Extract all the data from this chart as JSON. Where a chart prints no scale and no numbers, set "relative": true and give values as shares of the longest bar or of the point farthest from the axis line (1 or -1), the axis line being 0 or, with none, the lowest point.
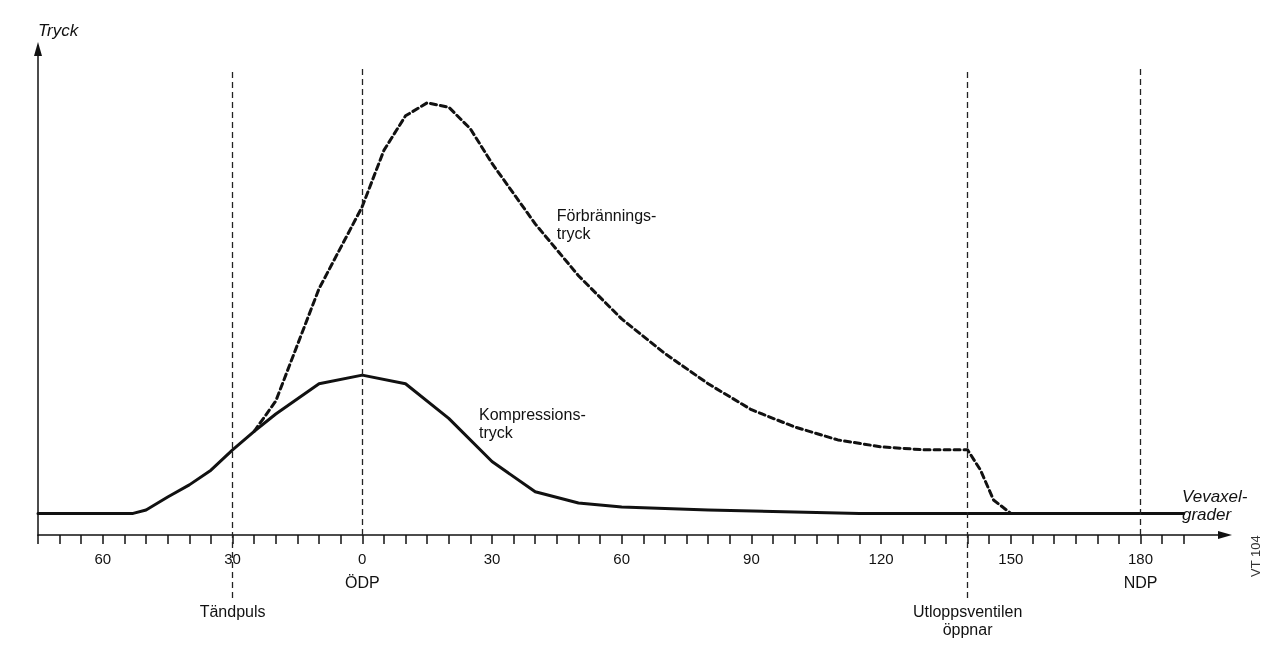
{
  "chart_data": {
    "type": "line",
    "relative": true,
    "xlabel": "Vevaxel-\ngrader",
    "ylabel": "Tryck",
    "marker": "none",
    "grid": false,
    "legend": false,
    "xlim": [
      -75,
      200
    ],
    "xticks": [
      {
        "value": -75,
        "label": null
      },
      {
        "value": -70,
        "label": null
      },
      {
        "value": -65,
        "label": null
      },
      {
        "value": -60,
        "label": "60"
      },
      {
        "value": -55,
        "label": null
      },
      {
        "value": -50,
        "label": null
      },
      {
        "value": -45,
        "label": null
      },
      {
        "value": -40,
        "label": null
      },
      {
        "value": -35,
        "label": null
      },
      {
        "value": -30,
        "label": "30"
      },
      {
        "value": -25,
        "label": null
      },
      {
        "value": -20,
        "label": null
      },
      {
        "value": -15,
        "label": null
      },
      {
        "value": -10,
        "label": null
      },
      {
        "value": -5,
        "label": null
      },
      0,
      {
        "value": 5,
        "label": null
      },
      {
        "value": 10,
        "label": null
      },
      {
        "value": 15,
        "label": null
      },
      {
        "value": 20,
        "label": null
      },
      {
        "value": 25,
        "label": null
      },
      30,
      {
        "value": 35,
        "label": null
      },
      {
        "value": 40,
        "label": null
      },
      {
        "value": 45,
        "label": null
      },
      {
        "value": 50,
        "label": null
      },
      {
        "value": 55,
        "label": null
      },
      60,
      {
        "value": 65,
        "label": null
      },
      {
        "value": 70,
        "label": null
      },
      {
        "value": 75,
        "label": null
      },
      {
        "value": 80,
        "label": null
      },
      {
        "value": 85,
        "label": null
      },
      90,
      {
        "value": 95,
        "label": null
      },
      {
        "value": 100,
        "label": null
      },
      {
        "value": 105,
        "label": null
      },
      {
        "value": 110,
        "label": null
      },
      {
        "value": 115,
        "label": null
      },
      120,
      {
        "value": 125,
        "label": null
      },
      {
        "value": 130,
        "label": null
      },
      {
        "value": 135,
        "label": null
      },
      {
        "value": 140,
        "label": null
      },
      {
        "value": 145,
        "label": null
      },
      150,
      {
        "value": 155,
        "label": null
      },
      {
        "value": 160,
        "label": null
      },
      {
        "value": 165,
        "label": null
      },
      {
        "value": 170,
        "label": null
      },
      {
        "value": 175,
        "label": null
      },
      180,
      {
        "value": 185,
        "label": null
      },
      {
        "value": 190,
        "label": null
      }
    ],
    "series": [
      {
        "name": "Kompressions-\ntryck",
        "color": "#111111",
        "line_style": "solid",
        "x": [
          -75,
          -53,
          -50,
          -45,
          -40,
          -35,
          -30,
          -25,
          -20,
          -10,
          0,
          10,
          20,
          30,
          40,
          50,
          60,
          80,
          100,
          115,
          190
        ],
        "values": [
          0.05,
          0.05,
          0.058,
          0.088,
          0.116,
          0.15,
          0.197,
          0.24,
          0.28,
          0.35,
          0.37,
          0.35,
          0.27,
          0.17,
          0.1,
          0.074,
          0.065,
          0.058,
          0.053,
          0.05,
          0.05
        ]
      },
      {
        "name": "Förbrännings-\ntryck",
        "color": "#111111",
        "line_style": "dashed",
        "x": [
          -25,
          -20,
          -10,
          0,
          5,
          10,
          15,
          20,
          25,
          30,
          40,
          50,
          60,
          70,
          80,
          90,
          100,
          110,
          120,
          130,
          140,
          143,
          146,
          150
        ],
        "values": [
          0.24,
          0.31,
          0.57,
          0.76,
          0.89,
          0.97,
          1,
          0.99,
          0.94,
          0.86,
          0.72,
          0.6,
          0.5,
          0.42,
          0.35,
          0.29,
          0.25,
          0.22,
          0.204,
          0.197,
          0.197,
          0.15,
          0.081,
          0.05
        ]
      }
    ],
    "ref_lines": [
      {
        "axis": "x",
        "value": -30,
        "label": "Tändpuls",
        "line_style": "dashed"
      },
      {
        "axis": "x",
        "value": 0,
        "label": "ÖDP",
        "line_style": "dashed"
      },
      {
        "axis": "x",
        "value": 140,
        "label": "Utloppsventilen\nöppnar",
        "line_style": "dashed"
      },
      {
        "axis": "x",
        "value": 180,
        "label": "NDP",
        "line_style": "dashed"
      }
    ],
    "annotations": [
      "VT 104"
    ]
  }
}
